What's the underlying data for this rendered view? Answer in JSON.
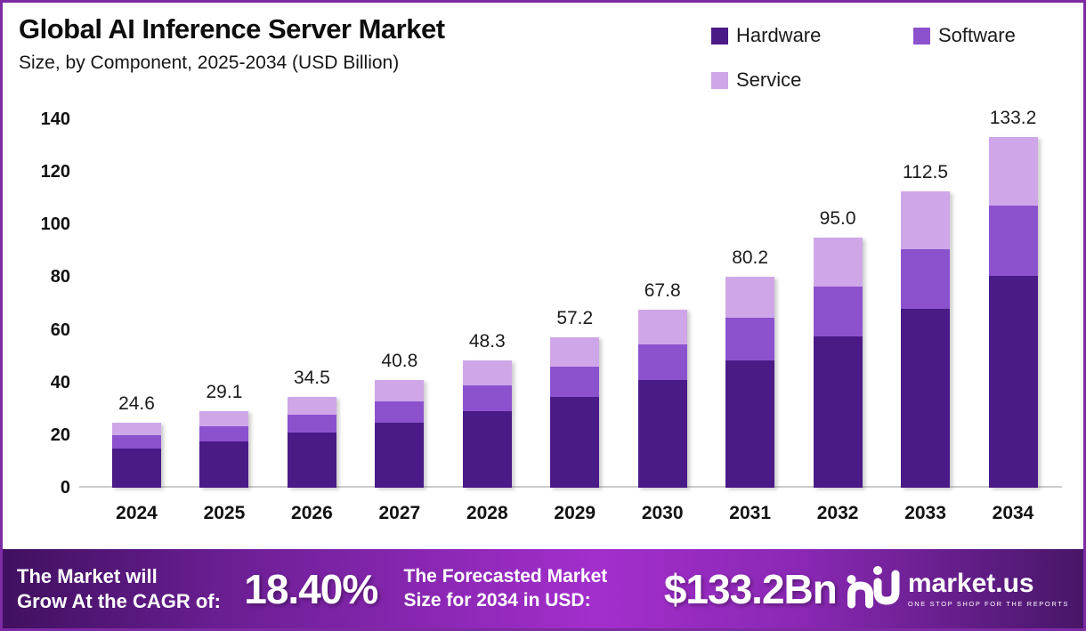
{
  "header": {
    "title": "Global AI Inference Server Market",
    "subtitle": "Size, by Component, 2025-2034 (USD Billion)"
  },
  "legend": [
    {
      "label": "Hardware",
      "color": "#4a1a87"
    },
    {
      "label": "Software",
      "color": "#8c52ce"
    },
    {
      "label": "Service",
      "color": "#cfa7e8"
    }
  ],
  "chart_data": {
    "type": "bar",
    "stacked": true,
    "title": "Global AI Inference Server Market Size, by Component, 2025-2034 (USD Billion)",
    "categories": [
      "2024",
      "2025",
      "2026",
      "2027",
      "2028",
      "2029",
      "2030",
      "2031",
      "2032",
      "2033",
      "2034"
    ],
    "series": [
      {
        "name": "Hardware",
        "color": "#4a1a87",
        "values": [
          14.9,
          17.6,
          20.9,
          24.7,
          29.2,
          34.6,
          41.0,
          48.5,
          57.5,
          68.1,
          80.6
        ]
      },
      {
        "name": "Software",
        "color": "#8c52ce",
        "values": [
          4.9,
          5.8,
          6.9,
          8.1,
          9.7,
          11.4,
          13.5,
          16.0,
          19.0,
          22.5,
          26.6
        ]
      },
      {
        "name": "Service",
        "color": "#cfa7e8",
        "values": [
          4.8,
          5.7,
          6.7,
          8.0,
          9.4,
          11.2,
          13.3,
          15.7,
          18.5,
          21.9,
          26.0
        ]
      }
    ],
    "totals": [
      24.6,
      29.1,
      34.5,
      40.8,
      48.3,
      57.2,
      67.8,
      80.2,
      95.0,
      112.5,
      133.2
    ],
    "total_labels": [
      "24.6",
      "29.1",
      "34.5",
      "40.8",
      "48.3",
      "57.2",
      "67.8",
      "80.2",
      "95.0",
      "112.5",
      "133.2"
    ],
    "ylim": [
      0,
      140
    ],
    "yticks": [
      0,
      20,
      40,
      60,
      80,
      100,
      120,
      140
    ],
    "xlabel": "",
    "ylabel": "",
    "grid": false,
    "legend_position": "top-right"
  },
  "footer": {
    "cagr_prefix_line1": "The Market will",
    "cagr_prefix_line2": "Grow At the CAGR of:",
    "cagr_value": "18.40%",
    "forecast_prefix_line1": "The Forecasted Market",
    "forecast_prefix_line2": "Size for 2034 in USD:",
    "forecast_value": "$133.2Bn",
    "brand": "market.us",
    "brand_tagline": "ONE STOP SHOP FOR THE REPORTS"
  },
  "colors": {
    "frame_border": "#7d2aa3",
    "axis_line": "#cccccc",
    "text": "#111111",
    "footer_gradient_left": "#401060",
    "footer_gradient_mid": "#a32ecc",
    "footer_gradient_right": "#471668"
  }
}
